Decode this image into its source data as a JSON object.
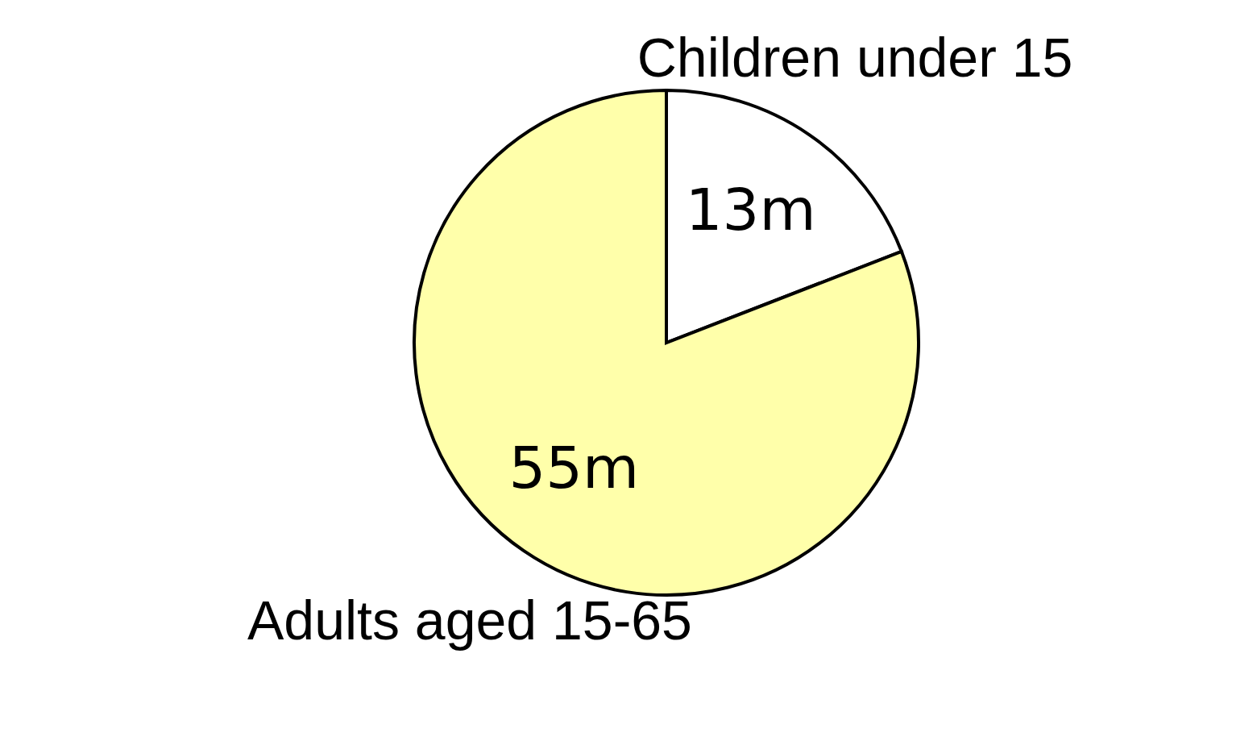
{
  "chart_data": {
    "type": "pie",
    "categories": [
      "Children under 15",
      "Adults aged 15-65"
    ],
    "values": [
      13,
      55
    ],
    "colors": [
      "#ffffff",
      "#ffffaa"
    ],
    "value_labels": [
      "13m",
      "55m"
    ]
  }
}
